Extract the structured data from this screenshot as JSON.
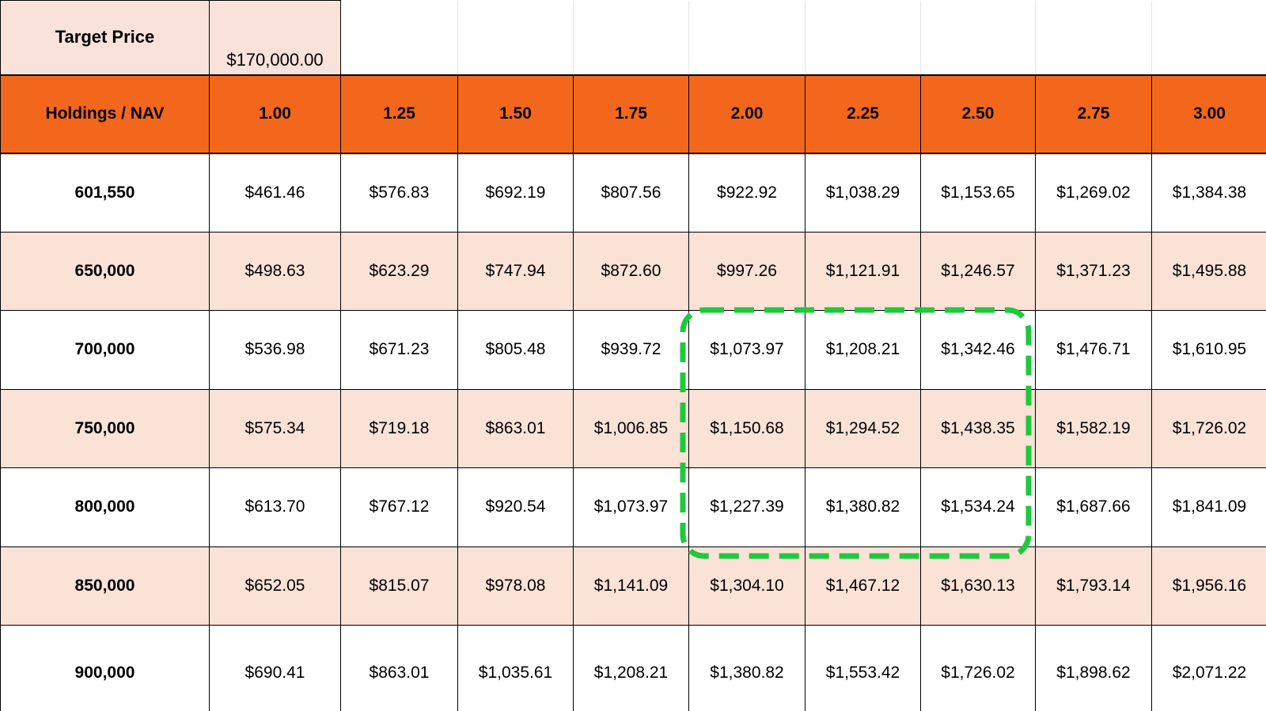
{
  "target_price": {
    "label": "Target Price",
    "value": "$170,000.00"
  },
  "table": {
    "corner_header": "Holdings / NAV",
    "multipliers": [
      "1.00",
      "1.25",
      "1.50",
      "1.75",
      "2.00",
      "2.25",
      "2.50",
      "2.75",
      "3.00"
    ],
    "rows": [
      {
        "holdings": "601,550",
        "values": [
          "$461.46",
          "$576.83",
          "$692.19",
          "$807.56",
          "$922.92",
          "$1,038.29",
          "$1,153.65",
          "$1,269.02",
          "$1,384.38"
        ]
      },
      {
        "holdings": "650,000",
        "values": [
          "$498.63",
          "$623.29",
          "$747.94",
          "$872.60",
          "$997.26",
          "$1,121.91",
          "$1,246.57",
          "$1,371.23",
          "$1,495.88"
        ]
      },
      {
        "holdings": "700,000",
        "values": [
          "$536.98",
          "$671.23",
          "$805.48",
          "$939.72",
          "$1,073.97",
          "$1,208.21",
          "$1,342.46",
          "$1,476.71",
          "$1,610.95"
        ]
      },
      {
        "holdings": "750,000",
        "values": [
          "$575.34",
          "$719.18",
          "$863.01",
          "$1,006.85",
          "$1,150.68",
          "$1,294.52",
          "$1,438.35",
          "$1,582.19",
          "$1,726.02"
        ]
      },
      {
        "holdings": "800,000",
        "values": [
          "$613.70",
          "$767.12",
          "$920.54",
          "$1,073.97",
          "$1,227.39",
          "$1,380.82",
          "$1,534.24",
          "$1,687.66",
          "$1,841.09"
        ]
      },
      {
        "holdings": "850,000",
        "values": [
          "$652.05",
          "$815.07",
          "$978.08",
          "$1,141.09",
          "$1,304.10",
          "$1,467.12",
          "$1,630.13",
          "$1,793.14",
          "$1,956.16"
        ]
      },
      {
        "holdings": "900,000",
        "values": [
          "$690.41",
          "$863.01",
          "$1,035.61",
          "$1,208.21",
          "$1,380.82",
          "$1,553.42",
          "$1,726.02",
          "$1,898.62",
          "$2,071.22"
        ]
      }
    ]
  },
  "highlight": {
    "shape": "dashed-rounded-rectangle",
    "columns": [
      "2.00",
      "2.25",
      "2.50"
    ],
    "rows": [
      "700,000",
      "750,000",
      "800,000"
    ],
    "color": "#1ec93b"
  },
  "colors": {
    "header_orange": "#f3671d",
    "band_peach": "#fbe2d6",
    "top_cell_peach": "#f9e2da",
    "grid_black": "#000000",
    "grid_faint": "#e6e6e6",
    "highlight_green": "#1ec93b"
  }
}
